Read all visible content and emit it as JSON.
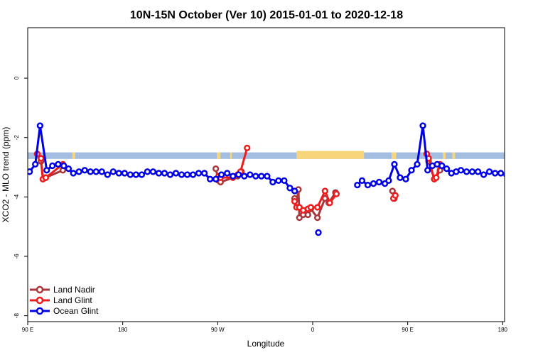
{
  "chart_data": {
    "type": "line",
    "title": "10N-15N October (Ver 10)   2015-01-01 to 2020-12-18",
    "xlabel": "Longitude",
    "ylabel": "XCO2 - MLO trend (ppm)",
    "xlim": [
      0,
      502
    ],
    "ylim": [
      -8.2,
      1.7
    ],
    "x_ticks": [
      {
        "value": 0,
        "label": "90 E"
      },
      {
        "value": 100,
        "label": "180"
      },
      {
        "value": 200,
        "label": "90 W"
      },
      {
        "value": 300,
        "label": "0"
      },
      {
        "value": 400,
        "label": "90 E"
      },
      {
        "value": 500,
        "label": "180"
      }
    ],
    "y_ticks": [
      {
        "value": 0,
        "label": "0"
      },
      {
        "value": -2,
        "label": "-2"
      },
      {
        "value": -4,
        "label": "-4"
      },
      {
        "value": -6,
        "label": "-6"
      },
      {
        "value": -8,
        "label": "-8"
      }
    ],
    "band": {
      "y_top": -2.5,
      "y_bottom": -2.72,
      "color": "#a3bde0"
    },
    "land_color": "#f7d57a",
    "land_segments": [
      [
        47,
        50
      ],
      [
        199,
        203
      ],
      [
        213,
        215
      ],
      [
        283,
        354
      ],
      [
        383,
        388
      ],
      [
        437,
        440
      ],
      [
        447,
        450
      ]
    ],
    "legend": {
      "position": "bottom-left"
    },
    "series": [
      {
        "name": "Land Nadir",
        "color": "#a8363a",
        "x": [
          10,
          14,
          16,
          19,
          37,
          198,
          201,
          203,
          221,
          225,
          281,
          283,
          285,
          286,
          290,
          295,
          298,
          305,
          313,
          317,
          324,
          384,
          386,
          420,
          422,
          428,
          430,
          434
        ],
        "y": [
          -2.55,
          -2.8,
          -3.4,
          -3.35,
          -3.1,
          -3.05,
          -3.45,
          -3.5,
          -3.3,
          -3.15,
          -4.05,
          -4.2,
          -3.75,
          -4.7,
          -4.6,
          -4.6,
          -4.4,
          -4.7,
          -4.05,
          -4.2,
          -3.85,
          -3.8,
          -4.05,
          -2.55,
          -2.8,
          -3.4,
          -3.35,
          -3.1
        ]
      },
      {
        "name": "Land Glint",
        "color": "#ee1c1c",
        "x": [
          10,
          14,
          16,
          19,
          37,
          201,
          203,
          216,
          221,
          224,
          231,
          281,
          283,
          286,
          290,
          295,
          298,
          305,
          313,
          318,
          325,
          385,
          387,
          420,
          422,
          428,
          430,
          434
        ],
        "y": [
          -2.55,
          -2.7,
          -3.4,
          -3.35,
          -2.9,
          -3.3,
          -3.35,
          -3.35,
          -3.25,
          -3.15,
          -2.35,
          -4.15,
          -4.35,
          -4.35,
          -4.45,
          -4.4,
          -4.35,
          -4.35,
          -3.8,
          -4.2,
          -3.9,
          -4.05,
          -3.95,
          -2.55,
          -2.7,
          -3.4,
          -3.35,
          -2.9
        ]
      },
      {
        "name": "Ocean Glint",
        "color": "#0000e6",
        "x": [
          2,
          8,
          13,
          20,
          26,
          32,
          38,
          43,
          48,
          54,
          60,
          66,
          72,
          78,
          84,
          90,
          96,
          102,
          108,
          114,
          120,
          126,
          132,
          138,
          144,
          150,
          156,
          162,
          168,
          174,
          180,
          186,
          192,
          198,
          204,
          210,
          216,
          222,
          228,
          234,
          240,
          246,
          252,
          258,
          264,
          270,
          276,
          281,
          306,
          347,
          352,
          358,
          364,
          370,
          376,
          380,
          386,
          392,
          398,
          404,
          410,
          416,
          421,
          426,
          431,
          436,
          441,
          446,
          451,
          456,
          462,
          468,
          474,
          480,
          486,
          492,
          498,
          504
        ],
        "y": [
          -3.15,
          -2.9,
          -1.6,
          -3.1,
          -2.95,
          -2.9,
          -2.95,
          -3.05,
          -3.2,
          -3.15,
          -3.1,
          -3.15,
          -3.15,
          -3.15,
          -3.25,
          -3.15,
          -3.2,
          -3.2,
          -3.25,
          -3.25,
          -3.25,
          -3.15,
          -3.15,
          -3.2,
          -3.2,
          -3.25,
          -3.2,
          -3.25,
          -3.25,
          -3.25,
          -3.2,
          -3.2,
          -3.4,
          -3.4,
          -3.25,
          -3.2,
          -3.3,
          -3.25,
          -3.3,
          -3.25,
          -3.3,
          -3.3,
          -3.3,
          -3.5,
          -3.45,
          -3.45,
          -3.7,
          -3.8,
          -5.2,
          -3.6,
          -3.45,
          -3.6,
          -3.55,
          -3.5,
          -3.55,
          -3.45,
          -2.9,
          -3.35,
          -3.4,
          -3.1,
          -2.9,
          -1.6,
          -3.1,
          -2.95,
          -2.9,
          -2.95,
          -3.05,
          -3.2,
          -3.15,
          -3.1,
          -3.15,
          -3.15,
          -3.15,
          -3.25,
          -3.15,
          -3.2,
          -3.2,
          -3.25
        ]
      }
    ]
  }
}
